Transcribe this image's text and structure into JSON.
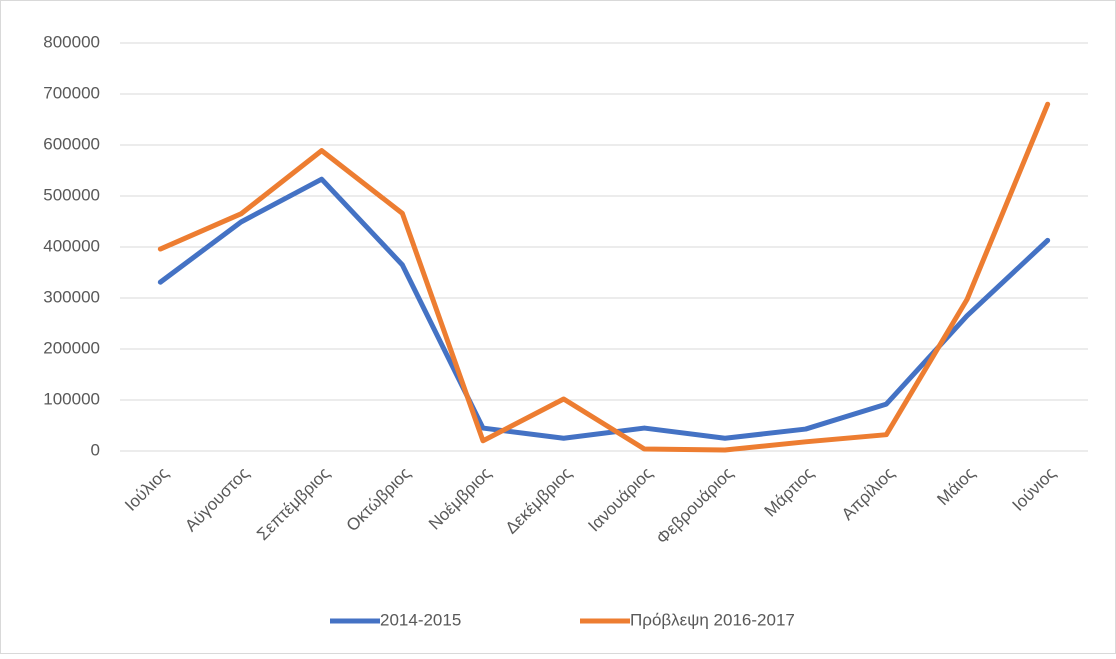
{
  "chart_data": {
    "type": "line",
    "categories": [
      "Ιούλιος",
      "Αύγουστος",
      "Σεπτέμβριος",
      "Οκτώβριος",
      "Νοέμβριος",
      "Δεκέμβριος",
      "Ιανουάριος",
      "Φεβρουάριος",
      "Μάρτιος",
      "Απρίλιος",
      "Μάιος",
      "Ιούνιος"
    ],
    "series": [
      {
        "name": "2014-2015",
        "color": "#4472c4",
        "values": [
          331000,
          449000,
          533000,
          365000,
          45000,
          25000,
          45000,
          25000,
          43000,
          92000,
          265000,
          413000
        ]
      },
      {
        "name": "Πρόβλεψη 2016-2017",
        "color": "#ed7d31",
        "values": [
          396000,
          465000,
          589000,
          466000,
          20000,
          102000,
          4000,
          2000,
          18000,
          32000,
          297000,
          680000
        ]
      }
    ],
    "ylim": [
      0,
      800000
    ],
    "yticks": [
      0,
      100000,
      200000,
      300000,
      400000,
      500000,
      600000,
      700000,
      800000
    ],
    "grid": true,
    "legend": "bottom"
  }
}
